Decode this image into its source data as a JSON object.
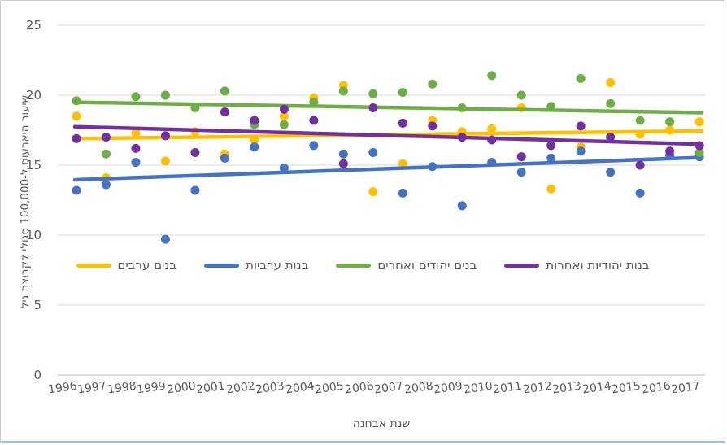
{
  "figure": {
    "background": "#ffffff",
    "border_color": "#c9c9c9",
    "bottom_rule_color": "#9dc3e6"
  },
  "chart_data": {
    "type": "scatter",
    "title": "",
    "xlabel": "שנת אבחנה",
    "ylabel": "שיעור היארעות ל-100,000 סגולי לקבוצת גיל",
    "x": [
      1996,
      1997,
      1998,
      1999,
      2000,
      2001,
      2002,
      2003,
      2004,
      2005,
      2006,
      2007,
      2008,
      2009,
      2010,
      2011,
      2012,
      2013,
      2014,
      2015,
      2016,
      2017
    ],
    "ylim": [
      0,
      25
    ],
    "yticks": [
      0,
      5,
      10,
      15,
      20,
      25
    ],
    "grid": true,
    "legend_position": "inside-middle",
    "gridline_color": "#d9d9d9",
    "axis_color": "#bfbfbf",
    "tick_label_color": "#595959",
    "series": [
      {
        "name": "בנים ערבים",
        "color": "#FFC000",
        "marker": "circle",
        "values": [
          18.5,
          14.1,
          17.3,
          15.3,
          17.4,
          15.8,
          16.8,
          18.5,
          19.8,
          20.7,
          13.1,
          15.1,
          18.2,
          17.4,
          17.6,
          19.1,
          13.3,
          16.3,
          20.9,
          17.2,
          17.5,
          18.1
        ],
        "trendline": {
          "start": 16.9,
          "end": 17.45
        }
      },
      {
        "name": "בנות ערביות",
        "color": "#4472C4",
        "marker": "circle",
        "values": [
          13.2,
          13.6,
          15.2,
          9.7,
          13.2,
          15.5,
          16.3,
          14.8,
          16.4,
          15.8,
          15.9,
          13.0,
          14.9,
          12.1,
          15.2,
          14.5,
          15.5,
          16.0,
          14.5,
          13.0,
          15.7,
          15.6
        ],
        "trendline": {
          "start": 13.95,
          "end": 15.55
        }
      },
      {
        "name": "בנים יהודים ואחרים",
        "color": "#70AD47",
        "marker": "circle",
        "values": [
          19.6,
          15.8,
          19.9,
          20.0,
          19.1,
          20.3,
          17.9,
          17.9,
          19.5,
          20.3,
          20.1,
          20.2,
          20.8,
          19.1,
          21.4,
          20.0,
          19.2,
          21.2,
          19.4,
          18.2,
          18.1,
          15.9
        ],
        "trendline": {
          "start": 19.5,
          "end": 18.75
        }
      },
      {
        "name": "בנות יהודיות ואחרות",
        "color": "#7030A0",
        "marker": "circle",
        "values": [
          16.9,
          17.0,
          16.2,
          17.1,
          15.9,
          18.8,
          18.2,
          19.0,
          18.2,
          15.1,
          19.1,
          18.0,
          17.8,
          17.0,
          16.8,
          15.6,
          16.4,
          17.8,
          17.0,
          15.0,
          16.0,
          16.4
        ],
        "trendline": {
          "start": 17.75,
          "end": 16.5
        }
      }
    ]
  }
}
